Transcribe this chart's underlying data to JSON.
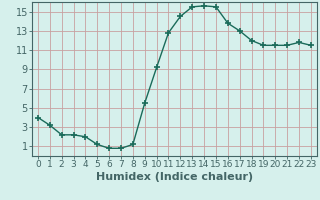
{
  "x": [
    0,
    1,
    2,
    3,
    4,
    5,
    6,
    7,
    8,
    9,
    10,
    11,
    12,
    13,
    14,
    15,
    16,
    17,
    18,
    19,
    20,
    21,
    22,
    23
  ],
  "y": [
    4.0,
    3.2,
    2.2,
    2.2,
    2.0,
    1.2,
    0.8,
    0.8,
    1.2,
    5.5,
    9.2,
    12.8,
    14.5,
    15.5,
    15.6,
    15.5,
    13.8,
    13.0,
    12.0,
    11.5,
    11.5,
    11.5,
    11.8,
    11.5
  ],
  "xlabel": "Humidex (Indice chaleur)",
  "xlim": [
    -0.5,
    23.5
  ],
  "ylim": [
    0,
    16
  ],
  "yticks": [
    1,
    3,
    5,
    7,
    9,
    11,
    13,
    15
  ],
  "xticks": [
    0,
    1,
    2,
    3,
    4,
    5,
    6,
    7,
    8,
    9,
    10,
    11,
    12,
    13,
    14,
    15,
    16,
    17,
    18,
    19,
    20,
    21,
    22,
    23
  ],
  "line_color": "#1a6b5a",
  "marker": "+",
  "bg_color": "#d6f0ec",
  "grid_color_major": "#c8a0a0",
  "grid_color_minor": "#d4b8b8",
  "axis_color": "#446666",
  "xlabel_fontsize": 8,
  "ytick_fontsize": 7,
  "xtick_fontsize": 6.5
}
